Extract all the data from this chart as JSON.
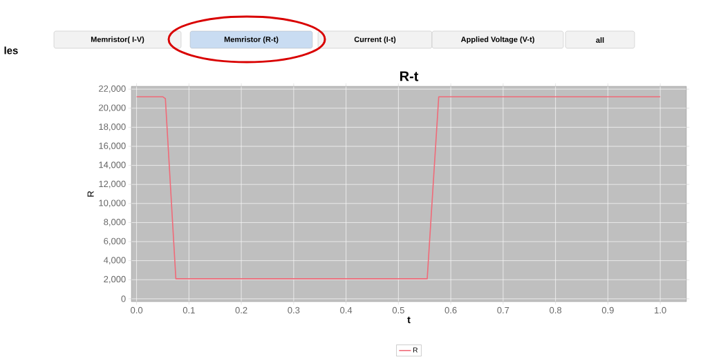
{
  "chart_data": {
    "type": "line",
    "title": "R-t",
    "xlabel": "t",
    "ylabel": "R",
    "x": [
      0.0,
      0.05,
      0.055,
      0.075,
      0.555,
      0.577,
      1.0
    ],
    "series": [
      {
        "name": "R",
        "color": "#f06a78",
        "values": [
          21200,
          21200,
          21000,
          2100,
          2100,
          21200,
          21200
        ]
      }
    ],
    "xlim": [
      -0.01,
      1.05
    ],
    "ylim": [
      -300,
      22300
    ],
    "xticks": [
      {
        "value": 0,
        "label": "0.0"
      },
      {
        "value": 0.1,
        "label": "0.1"
      },
      {
        "value": 0.2,
        "label": "0.2"
      },
      {
        "value": 0.3,
        "label": "0.3"
      },
      {
        "value": 0.4,
        "label": "0.4"
      },
      {
        "value": 0.5,
        "label": "0.5"
      },
      {
        "value": 0.6,
        "label": "0.6"
      },
      {
        "value": 0.7,
        "label": "0.7"
      },
      {
        "value": 0.8,
        "label": "0.8"
      },
      {
        "value": 0.9,
        "label": "0.9"
      },
      {
        "value": 1.0,
        "label": "1.0"
      }
    ],
    "yticks": [
      {
        "value": 0,
        "label": "0"
      },
      {
        "value": 2000,
        "label": "2,000"
      },
      {
        "value": 4000,
        "label": "4,000"
      },
      {
        "value": 6000,
        "label": "6,000"
      },
      {
        "value": 8000,
        "label": "8,000"
      },
      {
        "value": 10000,
        "label": "10,000"
      },
      {
        "value": 12000,
        "label": "12,000"
      },
      {
        "value": 14000,
        "label": "14,000"
      },
      {
        "value": 16000,
        "label": "16,000"
      },
      {
        "value": 18000,
        "label": "18,000"
      },
      {
        "value": 20000,
        "label": "20,000"
      },
      {
        "value": 22000,
        "label": "22,000"
      }
    ],
    "grid": true,
    "legend": "bottom",
    "marker": "none",
    "line_style": "solid",
    "annotations": [
      "les",
      "Memristor( I-V)",
      "Memristor (R-t)",
      "Current (I-t)",
      "Applied Voltage (V-t)",
      "all"
    ]
  }
}
